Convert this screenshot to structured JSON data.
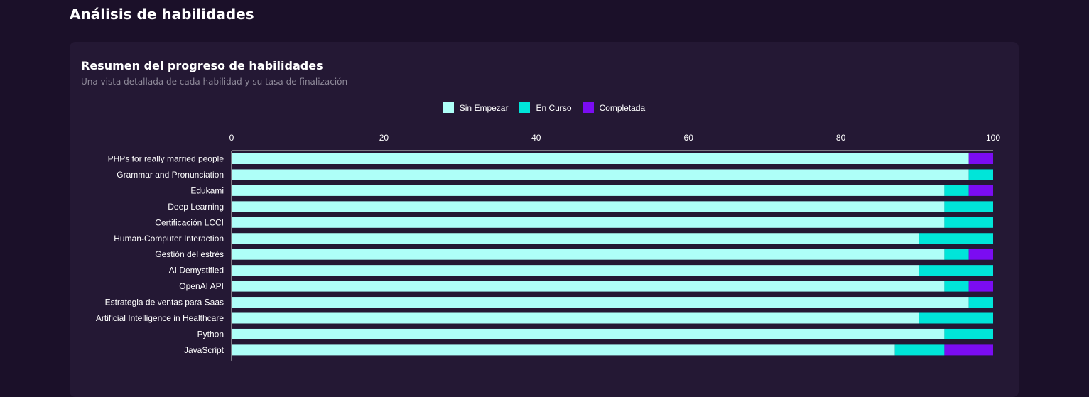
{
  "page": {
    "title": "Análisis de habilidades"
  },
  "card": {
    "title": "Resumen del progreso de habilidades",
    "subtitle": "Una vista detallada de cada habilidad y su tasa de finalización"
  },
  "colors": {
    "not_started": "#aefff8",
    "in_progress": "#00e5d9",
    "completed": "#7b0cf2",
    "axis": "#9a98a0"
  },
  "chart_data": {
    "type": "bar",
    "orientation": "horizontal",
    "stacked": true,
    "legend_position": "top-center",
    "xlim": [
      0,
      100
    ],
    "x_ticks": [
      0,
      20,
      40,
      60,
      80,
      100
    ],
    "categories": [
      "PHPs for really married people",
      "Grammar and Pronunciation",
      "Edukami",
      "Deep Learning",
      "Certificación LCCI",
      "Human-Computer Interaction",
      "Gestión del estrés",
      "AI Demystified",
      "OpenAI API",
      "Estrategia de ventas para Saas",
      "Artificial Intelligence in Healthcare",
      "Python",
      "JavaScript"
    ],
    "series": [
      {
        "name": "Sin Empezar",
        "color": "#aefff8",
        "values": [
          96.8,
          96.8,
          93.6,
          93.6,
          93.6,
          90.3,
          93.6,
          90.3,
          93.6,
          96.8,
          90.3,
          93.6,
          87.1
        ]
      },
      {
        "name": "En Curso",
        "color": "#00e5d9",
        "values": [
          0,
          3.2,
          3.2,
          6.4,
          6.4,
          9.7,
          3.2,
          9.7,
          3.2,
          3.2,
          9.7,
          6.4,
          6.5
        ]
      },
      {
        "name": "Completada",
        "color": "#7b0cf2",
        "values": [
          3.2,
          0,
          3.2,
          0,
          0,
          0,
          3.2,
          0,
          3.2,
          0,
          0,
          0,
          6.4
        ]
      }
    ]
  }
}
